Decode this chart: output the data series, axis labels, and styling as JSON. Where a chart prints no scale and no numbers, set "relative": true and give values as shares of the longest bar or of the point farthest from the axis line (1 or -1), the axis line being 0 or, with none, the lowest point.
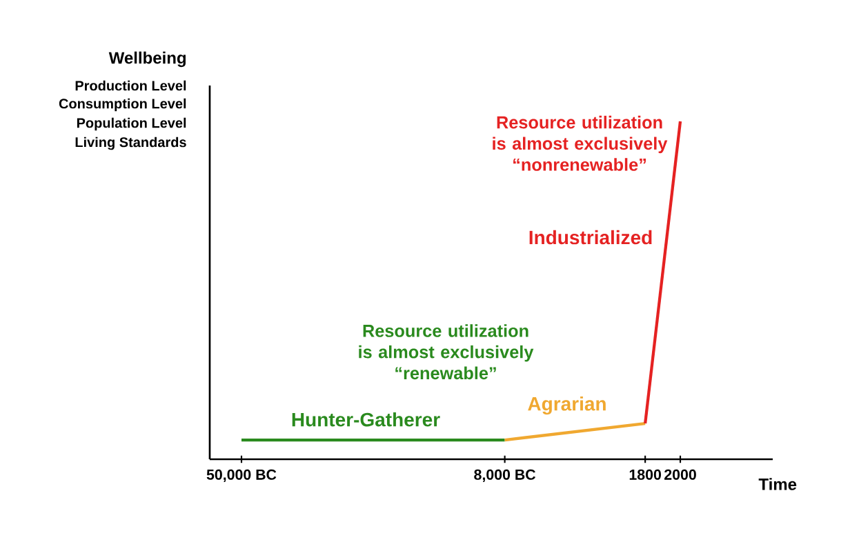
{
  "chart_data": {
    "type": "line",
    "relative": true,
    "ylabel": "Wellbeing",
    "xlabel": "Time",
    "categories": [
      "50,000 BC",
      null,
      null,
      null,
      null,
      null,
      null,
      null,
      null,
      null,
      null,
      null,
      null,
      null,
      null,
      "8,000 BC",
      null,
      null,
      null,
      null,
      null,
      null,
      null,
      "1800",
      null,
      "2000"
    ],
    "series": [
      {
        "name": "Hunter-Gatherer",
        "color": "#2a8a1e",
        "values": [
          0.057,
          null,
          null,
          null,
          null,
          null,
          null,
          null,
          null,
          null,
          null,
          null,
          null,
          null,
          null,
          0.057,
          null,
          null,
          null,
          null,
          null,
          null,
          null,
          null,
          null,
          null
        ]
      },
      {
        "name": "Agrarian",
        "color": "#f0a830",
        "values": [
          null,
          null,
          null,
          null,
          null,
          null,
          null,
          null,
          null,
          null,
          null,
          null,
          null,
          null,
          null,
          0.057,
          null,
          null,
          null,
          null,
          null,
          null,
          null,
          0.106,
          null,
          null
        ]
      },
      {
        "name": "Industrialized",
        "color": "#e52222",
        "values": [
          null,
          null,
          null,
          null,
          null,
          null,
          null,
          null,
          null,
          null,
          null,
          null,
          null,
          null,
          null,
          null,
          null,
          null,
          null,
          null,
          null,
          null,
          null,
          0.106,
          null,
          1.0
        ]
      }
    ],
    "annotations": [
      "Production Level",
      "Consumption Level",
      "Population Level",
      "Living Standards",
      "Resource utilization is almost exclusively “renewable”",
      "Resource utilization is almost exclusively “nonrenewable”"
    ],
    "marker": "none",
    "line_style": "solid"
  }
}
